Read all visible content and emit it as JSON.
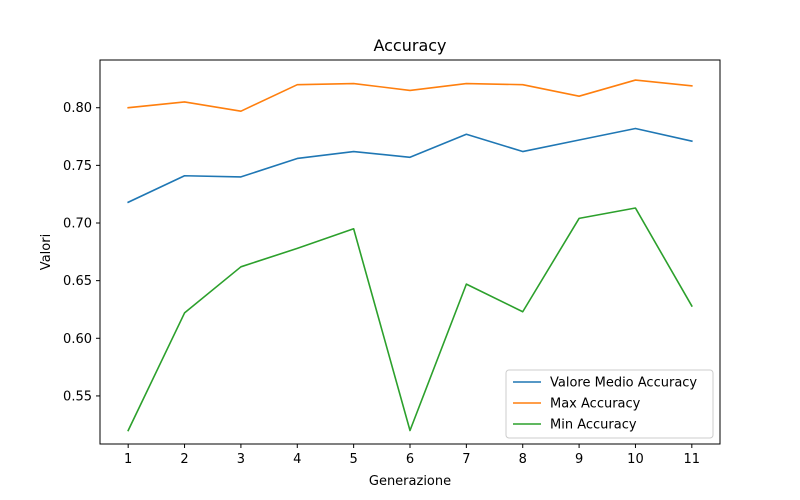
{
  "chart_data": {
    "type": "line",
    "title": "Accuracy",
    "xlabel": "Generazione",
    "ylabel": "Valori",
    "x": [
      1,
      2,
      3,
      4,
      5,
      6,
      7,
      8,
      9,
      10,
      11
    ],
    "xticks": [
      "1",
      "2",
      "3",
      "4",
      "5",
      "6",
      "7",
      "8",
      "9",
      "10",
      "11"
    ],
    "yticks": [
      "0.55",
      "0.60",
      "0.65",
      "0.70",
      "0.75",
      "0.80"
    ],
    "xlim": [
      0.5,
      11.5
    ],
    "ylim": [
      0.5083,
      0.8414
    ],
    "grid": false,
    "legend_position": "lower-right",
    "series": [
      {
        "name": "Valore Medio Accuracy",
        "color": "#1f77b4",
        "values": [
          0.718,
          0.741,
          0.74,
          0.756,
          0.762,
          0.757,
          0.777,
          0.762,
          0.772,
          0.782,
          0.771
        ]
      },
      {
        "name": "Max Accuracy",
        "color": "#ff7f0e",
        "values": [
          0.8,
          0.805,
          0.797,
          0.82,
          0.821,
          0.815,
          0.821,
          0.82,
          0.81,
          0.824,
          0.819
        ]
      },
      {
        "name": "Min Accuracy",
        "color": "#2ca02c",
        "values": [
          0.52,
          0.622,
          0.662,
          0.678,
          0.695,
          0.52,
          0.647,
          0.623,
          0.704,
          0.713,
          0.628
        ]
      }
    ]
  }
}
